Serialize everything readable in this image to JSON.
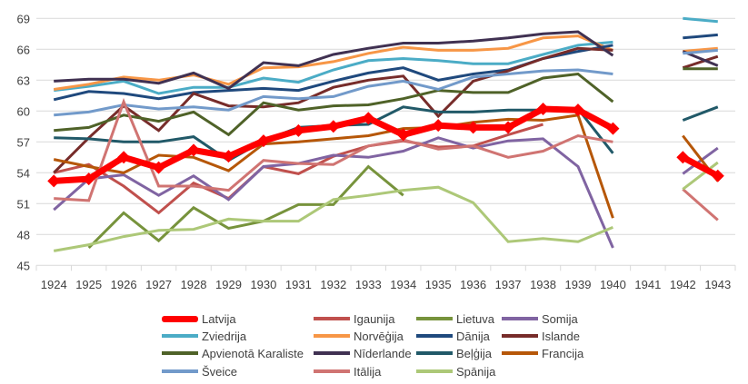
{
  "chart_data": {
    "type": "line",
    "title": "",
    "xlabel": "",
    "ylabel": "",
    "ylim": [
      45,
      69
    ],
    "yticks": [
      "45",
      "48",
      "51",
      "54",
      "57",
      "60",
      "63",
      "66",
      "69"
    ],
    "grid": true,
    "legend_position": "bottom",
    "categories": [
      "1924",
      "1925",
      "1926",
      "1927",
      "1928",
      "1929",
      "1930",
      "1931",
      "1932",
      "1933",
      "1934",
      "1935",
      "1936",
      "1937",
      "1938",
      "1939",
      "1940",
      "1941",
      "1942",
      "1943"
    ],
    "series": [
      {
        "name": "Latvija",
        "color": "#FF0000",
        "values": [
          53.2,
          53.4,
          55.5,
          54.5,
          56.2,
          55.6,
          57.1,
          58.1,
          58.5,
          59.3,
          57.7,
          58.6,
          58.4,
          58.4,
          60.2,
          60.1,
          58.3,
          null,
          55.5,
          53.7
        ]
      },
      {
        "name": "Igaunija",
        "color": "#C0504D",
        "values": [
          54.0,
          54.8,
          52.7,
          50.1,
          53.0,
          51.5,
          54.6,
          53.9,
          55.6,
          56.6,
          57.1,
          56.5,
          56.6,
          57.7,
          58.7,
          null,
          null,
          null,
          null,
          null
        ]
      },
      {
        "name": "Lietuva",
        "color": "#77933C",
        "values": [
          null,
          46.7,
          50.1,
          47.4,
          50.6,
          48.6,
          49.3,
          50.9,
          50.9,
          54.6,
          51.8,
          null,
          null,
          null,
          null,
          null,
          null,
          null,
          null,
          null
        ]
      },
      {
        "name": "Somija",
        "color": "#8064A2",
        "values": [
          50.4,
          53.4,
          53.8,
          51.8,
          53.7,
          51.4,
          54.6,
          54.9,
          55.7,
          55.5,
          56.1,
          57.4,
          56.4,
          57.1,
          57.3,
          54.6,
          46.7,
          null,
          53.9,
          56.4
        ]
      },
      {
        "name": "Zviedrija",
        "color": "#4BACC6",
        "values": [
          62.0,
          62.4,
          62.9,
          61.7,
          62.3,
          62.3,
          63.2,
          62.8,
          64.0,
          64.9,
          65.1,
          64.9,
          64.6,
          64.6,
          65.5,
          66.4,
          66.7,
          null,
          69.0,
          68.7
        ]
      },
      {
        "name": "Norvēģija",
        "color": "#F79646",
        "values": [
          62.1,
          62.6,
          63.3,
          63.0,
          63.5,
          62.6,
          64.2,
          64.3,
          64.8,
          65.6,
          66.2,
          65.9,
          65.9,
          66.1,
          67.1,
          67.3,
          65.9,
          null,
          65.8,
          66.1
        ]
      },
      {
        "name": "Dānija",
        "color": "#1F497D",
        "values": [
          61.1,
          61.9,
          61.7,
          61.2,
          61.8,
          62.0,
          62.2,
          62.0,
          62.9,
          63.7,
          64.2,
          63.0,
          63.6,
          64.0,
          65.1,
          65.8,
          66.4,
          null,
          67.1,
          67.4
        ]
      },
      {
        "name": "Islande",
        "color": "#772C2A",
        "values": [
          54.0,
          57.4,
          60.5,
          58.1,
          61.7,
          60.5,
          60.4,
          60.8,
          62.3,
          63.0,
          63.4,
          59.5,
          62.9,
          63.9,
          65.1,
          66.1,
          65.9,
          null,
          64.2,
          65.3
        ]
      },
      {
        "name": "Apvienotā Karaliste",
        "color": "#4F6228",
        "values": [
          58.1,
          58.4,
          59.6,
          59.0,
          59.9,
          57.7,
          60.8,
          60.1,
          60.5,
          60.6,
          61.2,
          62.0,
          61.8,
          61.8,
          63.2,
          63.6,
          60.9,
          null,
          64.1,
          64.1
        ]
      },
      {
        "name": "Nīderlande",
        "color": "#403152",
        "values": [
          62.9,
          63.1,
          63.1,
          62.7,
          63.7,
          62.2,
          64.7,
          64.4,
          65.5,
          66.1,
          66.6,
          66.6,
          66.8,
          67.1,
          67.5,
          67.7,
          65.4,
          null,
          65.8,
          64.4
        ]
      },
      {
        "name": "Beļģija",
        "color": "#215968",
        "values": [
          57.4,
          57.3,
          57.0,
          57.0,
          57.5,
          55.2,
          57.1,
          58.4,
          58.6,
          58.7,
          60.4,
          59.9,
          59.9,
          60.1,
          60.1,
          60.2,
          55.9,
          null,
          59.1,
          60.4
        ]
      },
      {
        "name": "Francija",
        "color": "#B65708",
        "values": [
          55.3,
          54.6,
          54.0,
          55.7,
          55.5,
          54.2,
          56.8,
          57.0,
          57.3,
          57.6,
          58.3,
          58.4,
          58.9,
          59.2,
          59.1,
          59.6,
          49.6,
          null,
          57.6,
          53.2
        ]
      },
      {
        "name": "Šveice",
        "color": "#729ACA",
        "values": [
          59.6,
          59.9,
          60.6,
          60.2,
          60.4,
          60.1,
          61.4,
          61.2,
          61.4,
          62.4,
          62.9,
          62.1,
          63.3,
          63.6,
          63.9,
          64.0,
          63.6,
          null,
          65.6,
          65.9
        ]
      },
      {
        "name": "Itālija",
        "color": "#D07472",
        "values": [
          51.5,
          51.3,
          60.9,
          52.7,
          52.7,
          52.3,
          55.2,
          54.9,
          54.8,
          56.6,
          57.2,
          56.3,
          56.6,
          55.5,
          56.1,
          57.6,
          57.0,
          null,
          52.4,
          49.4
        ]
      },
      {
        "name": "Spānija",
        "color": "#ADC878",
        "values": [
          46.4,
          47.0,
          47.8,
          48.4,
          48.5,
          49.5,
          49.3,
          49.3,
          51.4,
          51.8,
          52.3,
          52.6,
          51.1,
          47.3,
          47.6,
          47.3,
          48.7,
          null,
          52.4,
          55.0
        ]
      }
    ]
  }
}
